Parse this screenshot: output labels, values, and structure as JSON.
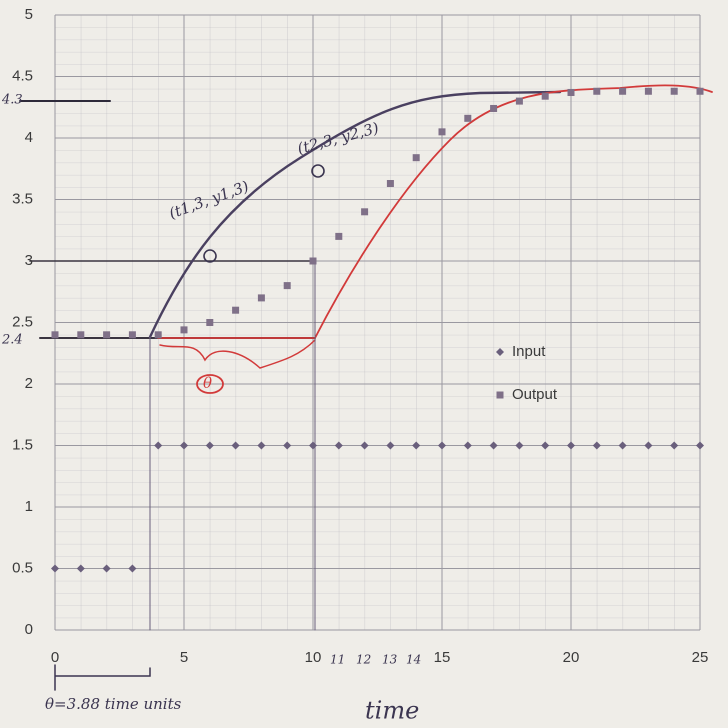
{
  "chart_data": {
    "type": "scatter",
    "x": [
      0,
      1,
      2,
      3,
      4,
      5,
      6,
      7,
      8,
      9,
      10,
      11,
      12,
      13,
      14,
      15,
      16,
      17,
      18,
      19,
      20,
      21,
      22,
      23,
      24,
      25
    ],
    "series": [
      {
        "name": "Input",
        "color": "#6a5f7c",
        "marker": "diamond",
        "values": [
          0.5,
          0.5,
          0.5,
          0.5,
          1.5,
          1.5,
          1.5,
          1.5,
          1.5,
          1.5,
          1.5,
          1.5,
          1.5,
          1.5,
          1.5,
          1.5,
          1.5,
          1.5,
          1.5,
          1.5,
          1.5,
          1.5,
          1.5,
          1.5,
          1.5,
          1.5
        ]
      },
      {
        "name": "Output",
        "color": "#7f7088",
        "marker": "square",
        "values": [
          2.4,
          2.4,
          2.4,
          2.4,
          2.4,
          2.44,
          2.5,
          2.6,
          2.7,
          2.8,
          3.0,
          3.2,
          3.4,
          3.63,
          3.84,
          4.05,
          4.16,
          4.24,
          4.3,
          4.34,
          4.37,
          4.38,
          4.38,
          4.38,
          4.38,
          4.38
        ]
      }
    ],
    "xlim": [
      0,
      25
    ],
    "ylim": [
      0,
      5
    ],
    "xticks": [
      0,
      5,
      10,
      15,
      20,
      25
    ],
    "yticks": [
      0,
      0.5,
      1,
      1.5,
      2,
      2.5,
      3,
      3.5,
      4,
      4.5,
      5
    ],
    "grid": true,
    "legend": "right",
    "annotations": [
      "4.3",
      "2.4",
      "(t1,3, y1,3)",
      "(t2,3, y2,3)",
      "θ",
      "11",
      "12",
      "13",
      "14",
      "θ=3.88 time units",
      "time"
    ]
  }
}
